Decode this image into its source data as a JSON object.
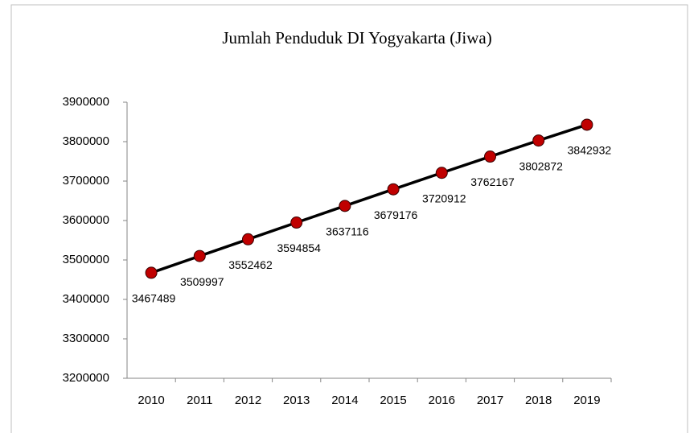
{
  "chart_data": {
    "type": "line",
    "title": "Jumlah Penduduk DI Yogyakarta (Jiwa)",
    "categories": [
      "2010",
      "2011",
      "2012",
      "2013",
      "2014",
      "2015",
      "2016",
      "2017",
      "2018",
      "2019"
    ],
    "series": [
      {
        "name": "Jumlah Penduduk",
        "color": "#c00000",
        "values": [
          3467489,
          3509997,
          3552462,
          3594854,
          3637116,
          3679176,
          3720912,
          3762167,
          3802872,
          3842932
        ]
      }
    ],
    "ylim": [
      3200000,
      3900000
    ],
    "yticks": [
      3200000,
      3300000,
      3400000,
      3500000,
      3600000,
      3700000,
      3800000,
      3900000
    ],
    "grid": false
  }
}
